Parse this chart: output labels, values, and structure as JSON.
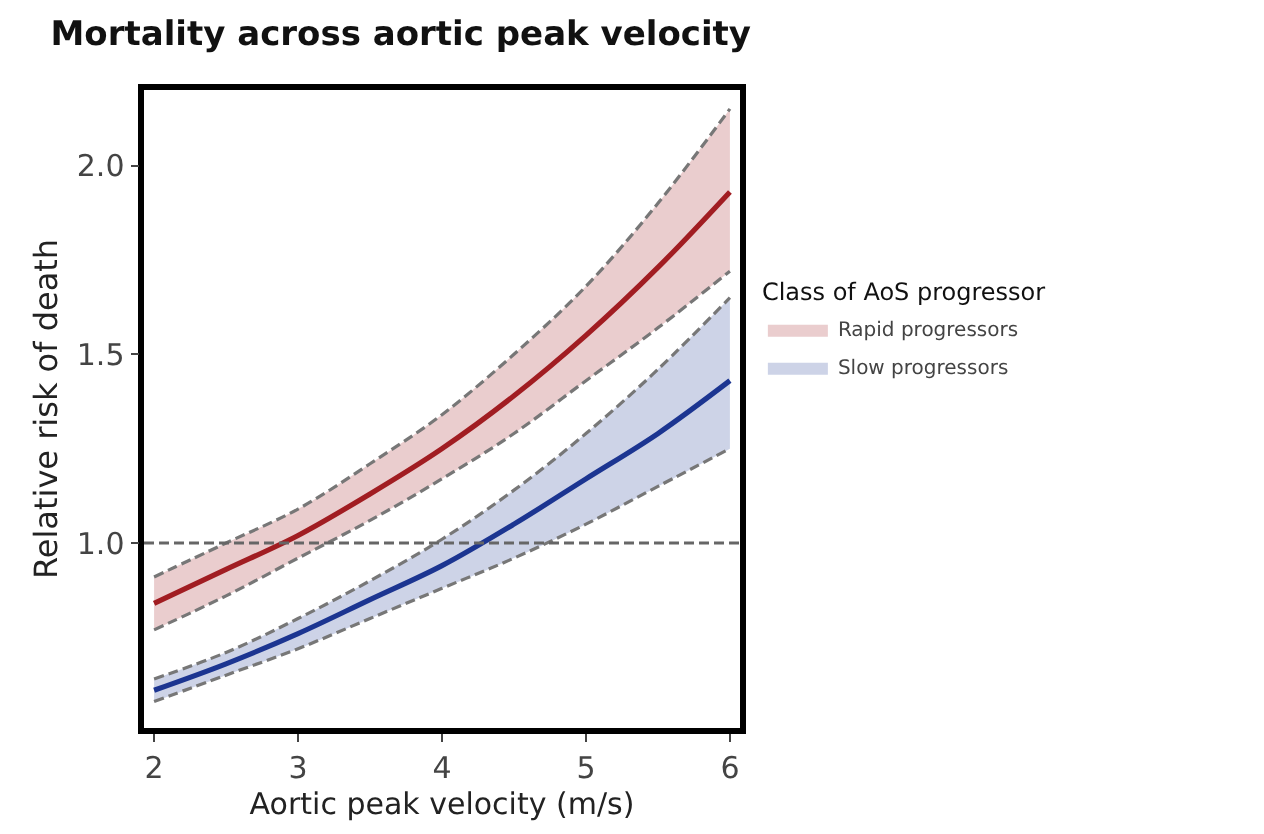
{
  "chart_data": {
    "type": "line",
    "title": "Mortality across aortic peak velocity",
    "xlabel": "Aortic peak velocity (m/s)",
    "ylabel": "Relative risk of death",
    "legend_title": "Class of AoS progressor",
    "legend": "right",
    "grid": false,
    "line_style": "solid",
    "marker": "none",
    "x": [
      2,
      2.5,
      3,
      3.5,
      4,
      4.5,
      5,
      5.5,
      6
    ],
    "xlim": [
      1.93,
      6.07
    ],
    "xticks": [
      2,
      3,
      4,
      5,
      6
    ],
    "ylim": [
      0.51,
      2.2
    ],
    "yticks": [
      {
        "value": 1,
        "label": "1.0"
      },
      {
        "value": 1.5,
        "label": "1.5"
      },
      {
        "value": 2,
        "label": "2.0"
      }
    ],
    "series": [
      {
        "name": "Rapid progressors",
        "color": "#a11d22",
        "values": [
          0.84,
          0.93,
          1.02,
          1.13,
          1.25,
          1.39,
          1.55,
          1.73,
          1.93
        ],
        "lower": [
          0.77,
          0.86,
          0.96,
          1.06,
          1.17,
          1.29,
          1.43,
          1.57,
          1.72
        ],
        "upper": [
          0.91,
          1.0,
          1.09,
          1.21,
          1.34,
          1.5,
          1.68,
          1.9,
          2.15
        ]
      },
      {
        "name": "Slow progressors",
        "color": "#1c3591",
        "values": [
          0.61,
          0.68,
          0.76,
          0.85,
          0.94,
          1.05,
          1.17,
          1.29,
          1.43
        ],
        "lower": [
          0.58,
          0.65,
          0.72,
          0.8,
          0.88,
          0.96,
          1.05,
          1.15,
          1.25
        ],
        "upper": [
          0.64,
          0.71,
          0.8,
          0.9,
          1.01,
          1.14,
          1.29,
          1.46,
          1.65
        ]
      },
      {
        "color": "#777777",
        "line_style": "dashed",
        "values": [
          0.77,
          0.86,
          0.96,
          1.06,
          1.17,
          1.29,
          1.43,
          1.57,
          1.72
        ]
      },
      {
        "color": "#777777",
        "line_style": "dashed",
        "values": [
          0.91,
          1.0,
          1.09,
          1.21,
          1.34,
          1.5,
          1.68,
          1.9,
          2.15
        ]
      },
      {
        "color": "#777777",
        "line_style": "dashed",
        "values": [
          0.58,
          0.65,
          0.72,
          0.8,
          0.88,
          0.96,
          1.05,
          1.15,
          1.25
        ]
      },
      {
        "color": "#777777",
        "line_style": "dashed",
        "values": [
          0.64,
          0.71,
          0.8,
          0.9,
          1.01,
          1.14,
          1.29,
          1.46,
          1.65
        ]
      }
    ],
    "ref_lines": [
      {
        "axis": "y",
        "value": 1,
        "color": "#666666",
        "line_style": "dashed"
      }
    ]
  }
}
